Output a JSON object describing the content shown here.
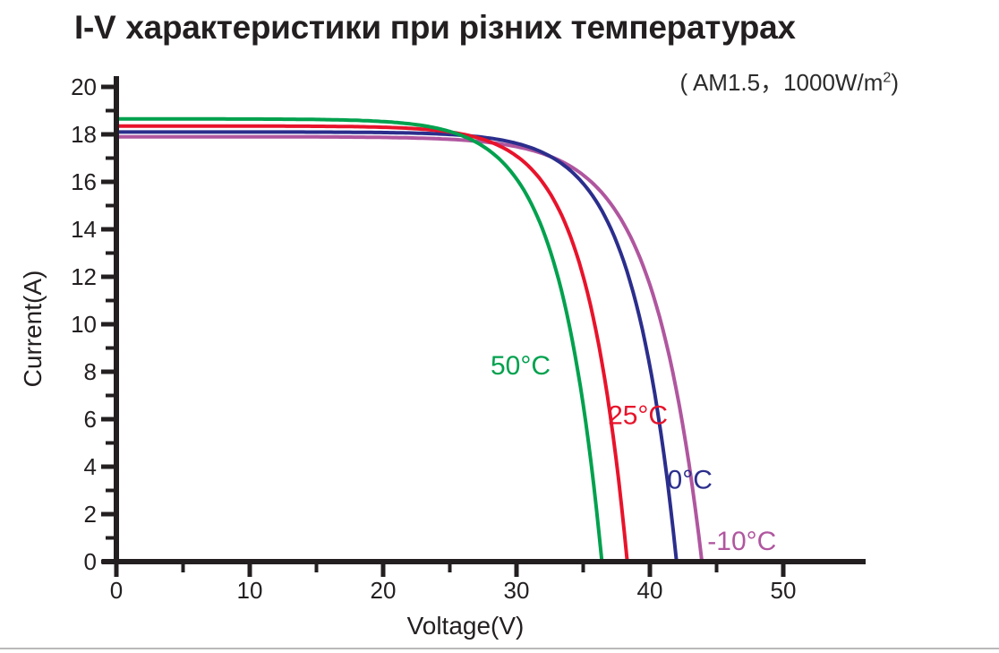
{
  "title": {
    "prefix": "I-V",
    "rest": "характеристики при різних температурах"
  },
  "subtitle": {
    "prefix": "( AM1.5，1000W/m",
    "sup": "2",
    "suffix": ")"
  },
  "colors": {
    "axis": "#231f20",
    "title": "#231f20",
    "divider": "#b9b9b9",
    "series_green": "#00a14e",
    "series_red": "#e8132b",
    "series_blue": "#2b2e8c",
    "series_purple": "#b0569f"
  },
  "chart_data": {
    "type": "line",
    "title": "I-V характеристики при різних температурах",
    "annotation": "( AM1.5，1000W/m²)",
    "xlabel": "Voltage(V)",
    "ylabel": "Current(A)",
    "xlim": [
      0,
      56
    ],
    "ylim": [
      0,
      20.5
    ],
    "grid": false,
    "legend_position": "inline-curve-labels",
    "x_major_ticks": [
      0,
      10,
      20,
      30,
      40,
      50
    ],
    "x_minor_ticks": [
      5,
      15,
      25,
      35,
      45
    ],
    "y_major_ticks": [
      0,
      2,
      4,
      6,
      8,
      10,
      12,
      14,
      16,
      18,
      20
    ],
    "y_minor_ticks": [
      1,
      3,
      5,
      7,
      9,
      11,
      13,
      15,
      17,
      19
    ],
    "series": [
      {
        "name": "50°C",
        "color": "#00a14e",
        "isc_a": 18.65,
        "voc_v": 36.4,
        "knee_dv": 3.2,
        "label_pos": {
          "v": 30.3,
          "i": 8.3
        },
        "points": [
          {
            "v": 0,
            "i": 18.65
          },
          {
            "v": 10,
            "i": 18.65
          },
          {
            "v": 20,
            "i": 18.6
          },
          {
            "v": 25,
            "i": 18.1
          },
          {
            "v": 30,
            "i": 16.1
          },
          {
            "v": 33,
            "i": 12.2
          },
          {
            "v": 35,
            "i": 6.6
          },
          {
            "v": 36.4,
            "i": 0
          }
        ]
      },
      {
        "name": "25°C",
        "color": "#e8132b",
        "isc_a": 18.35,
        "voc_v": 38.3,
        "knee_dv": 3.1,
        "label_pos": {
          "v": 39.1,
          "i": 6.2
        },
        "points": [
          {
            "v": 0,
            "i": 18.35
          },
          {
            "v": 10,
            "i": 18.35
          },
          {
            "v": 20,
            "i": 18.3
          },
          {
            "v": 27,
            "i": 18.0
          },
          {
            "v": 30,
            "i": 17.1
          },
          {
            "v": 33,
            "i": 15.0
          },
          {
            "v": 35,
            "i": 12.0
          },
          {
            "v": 37,
            "i": 6.3
          },
          {
            "v": 38.3,
            "i": 0
          }
        ]
      },
      {
        "name": "0°C",
        "color": "#2b2e8c",
        "isc_a": 18.1,
        "voc_v": 42.0,
        "knee_dv": 3.3,
        "label_pos": {
          "v": 43.0,
          "i": 3.5
        },
        "points": [
          {
            "v": 0,
            "i": 18.1
          },
          {
            "v": 10,
            "i": 18.1
          },
          {
            "v": 20,
            "i": 18.1
          },
          {
            "v": 30,
            "i": 17.6
          },
          {
            "v": 33,
            "i": 16.9
          },
          {
            "v": 35,
            "i": 15.9
          },
          {
            "v": 37,
            "i": 14.1
          },
          {
            "v": 39,
            "i": 10.8
          },
          {
            "v": 40,
            "i": 8.2
          },
          {
            "v": 41,
            "i": 4.7
          },
          {
            "v": 42,
            "i": 0
          }
        ]
      },
      {
        "name": "-10°C",
        "color": "#b0569f",
        "isc_a": 17.9,
        "voc_v": 43.9,
        "knee_dv": 3.7,
        "label_pos": {
          "v": 46.9,
          "i": 0.9
        },
        "points": [
          {
            "v": 0,
            "i": 17.9
          },
          {
            "v": 10,
            "i": 17.9
          },
          {
            "v": 20,
            "i": 17.9
          },
          {
            "v": 30,
            "i": 17.5
          },
          {
            "v": 33,
            "i": 17.0
          },
          {
            "v": 35,
            "i": 16.3
          },
          {
            "v": 37,
            "i": 15.1
          },
          {
            "v": 39,
            "i": 13.1
          },
          {
            "v": 41,
            "i": 9.7
          },
          {
            "v": 42,
            "i": 7.2
          },
          {
            "v": 43,
            "i": 3.9
          },
          {
            "v": 43.9,
            "i": 0
          }
        ]
      }
    ]
  }
}
